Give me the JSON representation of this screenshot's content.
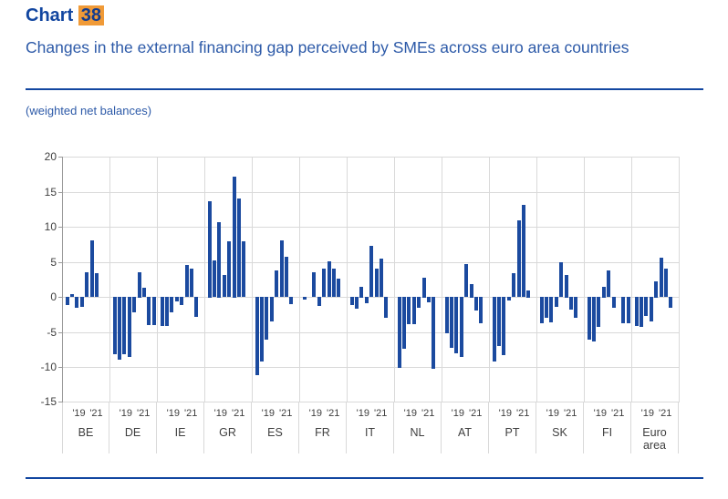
{
  "header": {
    "chart_label": "Chart",
    "chart_number": "38",
    "subtitle": "Changes in the external financing gap perceived by SMEs across euro area countries",
    "units_note": "(weighted net balances)"
  },
  "colors": {
    "bar": "#1b4a9f",
    "title_blue": "#1246a0",
    "subtitle_blue": "#2d5aa8",
    "highlight_orange": "#f09a37",
    "gridline": "#d9d9d9",
    "axis_line": "#9a9a9a",
    "tick_label": "#3f3f3f"
  },
  "chart_data": {
    "type": "bar",
    "title": "Chart 38 — Changes in the external financing gap perceived by SMEs across euro area countries",
    "xlabel": "",
    "ylabel": "weighted net balances",
    "ylim": [
      -15,
      20
    ],
    "yticks": [
      20,
      15,
      10,
      5,
      0,
      -5,
      -10,
      -15
    ],
    "grid": true,
    "legend_position": "none",
    "year_tick_labels": [
      "'19",
      "'21"
    ],
    "bars_per_country": 9,
    "categories": [
      "BE",
      "DE",
      "IE",
      "GR",
      "ES",
      "FR",
      "IT",
      "NL",
      "AT",
      "PT",
      "SK",
      "FI",
      "Euro area"
    ],
    "series": [
      {
        "country": "BE",
        "values": [
          -1.2,
          0.4,
          -1.6,
          -1.4,
          3.5,
          8.1,
          3.4,
          0,
          0
        ]
      },
      {
        "country": "DE",
        "values": [
          -8.2,
          -9.0,
          -8.2,
          -8.6,
          -2.2,
          3.6,
          1.3,
          -4.0,
          -4.0
        ]
      },
      {
        "country": "IE",
        "values": [
          -4.2,
          -4.2,
          -2.2,
          -0.6,
          -1.2,
          4.6,
          4.0,
          -2.8,
          0
        ]
      },
      {
        "country": "GR",
        "values": [
          13.7,
          5.2,
          10.7,
          3.1,
          7.9,
          17.2,
          14.0,
          7.9,
          0
        ]
      },
      {
        "country": "ES",
        "values": [
          -11.1,
          -9.2,
          -6.1,
          -3.5,
          3.8,
          8.1,
          5.7,
          -1.1,
          0
        ]
      },
      {
        "country": "FR",
        "values": [
          -0.4,
          0,
          3.5,
          -1.3,
          4.0,
          5.1,
          4.0,
          2.6,
          0
        ]
      },
      {
        "country": "IT",
        "values": [
          -1.2,
          -1.7,
          1.5,
          -0.9,
          7.3,
          4.0,
          5.5,
          -3.0,
          0
        ]
      },
      {
        "country": "NL",
        "values": [
          -10.1,
          -7.4,
          -3.9,
          -3.9,
          -1.5,
          2.8,
          -0.8,
          -10.2,
          0
        ]
      },
      {
        "country": "AT",
        "values": [
          -5.2,
          -7.3,
          -8.1,
          -8.5,
          4.7,
          1.9,
          -2.0,
          -3.8,
          0
        ]
      },
      {
        "country": "PT",
        "values": [
          -9.2,
          -7.0,
          -8.3,
          -0.5,
          3.4,
          10.9,
          13.1,
          1.0,
          0
        ]
      },
      {
        "country": "SK",
        "values": [
          -3.8,
          -3.0,
          -3.6,
          -1.4,
          4.9,
          3.2,
          -1.8,
          -3.0,
          0
        ]
      },
      {
        "country": "FI",
        "values": [
          -6.1,
          -6.4,
          -4.3,
          1.5,
          3.8,
          -1.5,
          0,
          -3.8,
          -3.8
        ]
      },
      {
        "country": "Euro area",
        "values": [
          -4.2,
          -4.3,
          -2.7,
          -3.5,
          2.3,
          5.6,
          4.0,
          -1.6,
          0
        ]
      }
    ]
  }
}
